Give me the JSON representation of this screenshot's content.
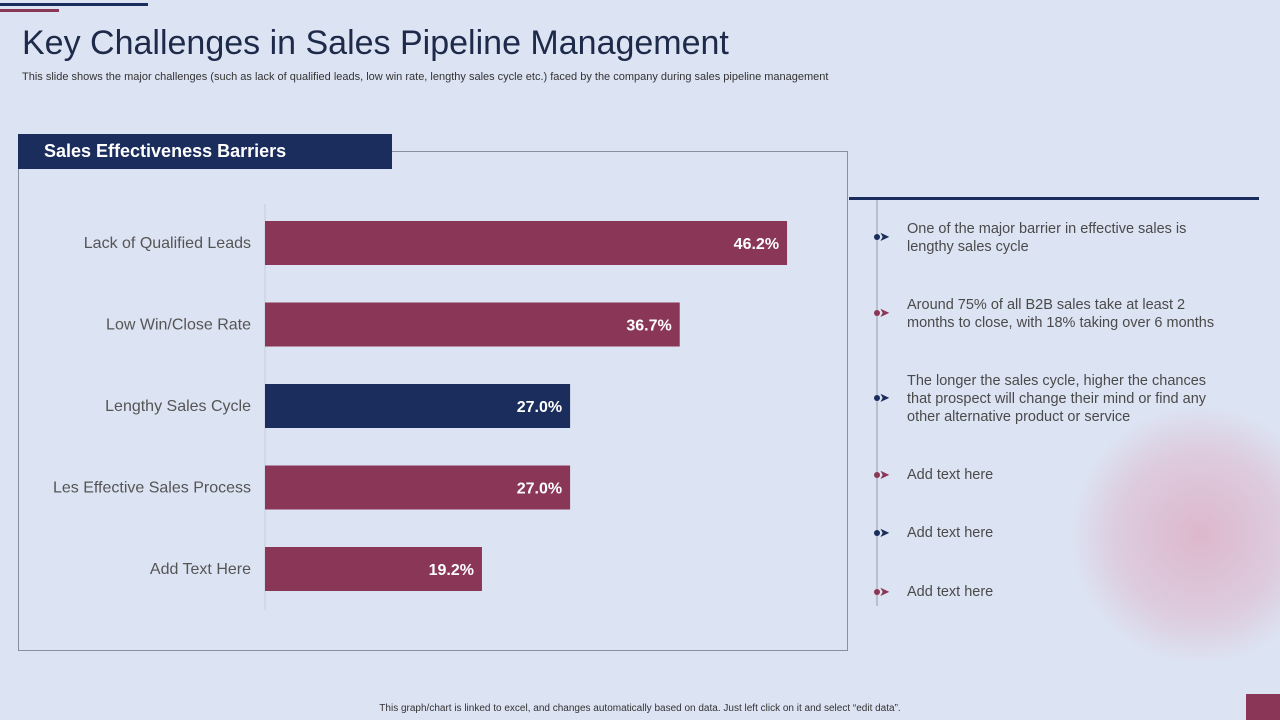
{
  "title": "Key Challenges in Sales Pipeline Management",
  "subtitle": "This slide shows the major challenges (such as lack of qualified leads, low win rate, lengthy sales cycle etc.) faced by the company during sales pipeline management",
  "panel_title": "Sales Effectiveness Barriers",
  "colors": {
    "navy": "#1b2d5c",
    "maroon": "#8a3656"
  },
  "chart_data": {
    "type": "bar",
    "orientation": "horizontal",
    "title": "Sales Effectiveness Barriers",
    "categories": [
      "Lack of Qualified Leads",
      "Low Win/Close Rate",
      "Lengthy Sales Cycle",
      "Les Effective Sales Process",
      "Add Text Here"
    ],
    "values": [
      46.2,
      36.7,
      27.0,
      27.0,
      19.2
    ],
    "value_labels": [
      "46.2%",
      "36.7%",
      "27.0%",
      "27.0%",
      "19.2%"
    ],
    "bar_colors": [
      "#8a3656",
      "#8a3656",
      "#1b2d5c",
      "#8a3656",
      "#8a3656"
    ],
    "xlim": [
      0,
      50
    ],
    "unit": "%",
    "grid": false
  },
  "notes": [
    {
      "text": "One of the major barrier in effective sales is lengthy sales cycle",
      "color": "#1b2d5c"
    },
    {
      "text": "Around 75% of all B2B sales take at least 2 months to close, with 18% taking over 6 months",
      "color": "#8a3656"
    },
    {
      "text": "The longer the sales cycle, higher the chances that prospect will change their mind or find any other alternative product or service",
      "color": "#1b2d5c"
    },
    {
      "text": "Add text here",
      "color": "#8a3656"
    },
    {
      "text": "Add text here",
      "color": "#1b2d5c"
    },
    {
      "text": "Add text here",
      "color": "#8a3656"
    }
  ],
  "footer": "This graph/chart is linked to excel, and changes automatically based on data. Just left click on it and select “edit data”."
}
